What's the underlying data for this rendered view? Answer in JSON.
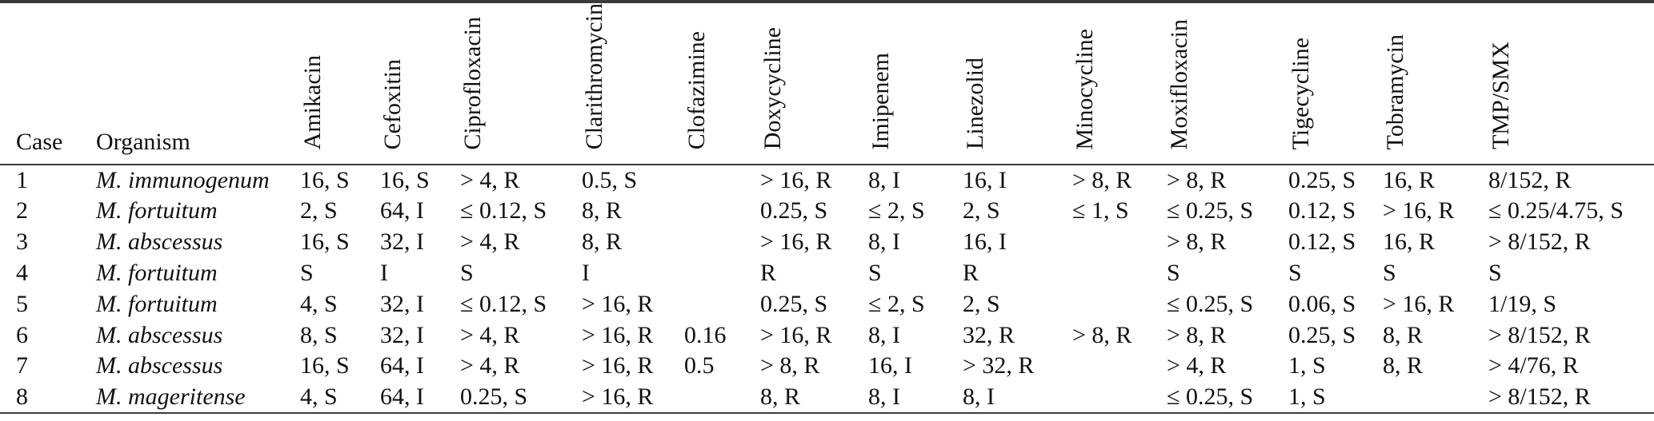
{
  "colors": {
    "background": "#ffffff",
    "text": "#111111",
    "rule": "#3a3a3a"
  },
  "table": {
    "columns": [
      {
        "id": "case",
        "label": "Case",
        "rotated": false
      },
      {
        "id": "organism",
        "label": "Organism",
        "rotated": false
      },
      {
        "id": "amikacin",
        "label": "Amikacin",
        "rotated": true
      },
      {
        "id": "cefoxitin",
        "label": "Cefoxitin",
        "rotated": true
      },
      {
        "id": "ciprofloxacin",
        "label": "Ciprofloxacin",
        "rotated": true
      },
      {
        "id": "clarithromycin",
        "label": "Clarithromycin",
        "rotated": true
      },
      {
        "id": "clofazimine",
        "label": "Clofazimine",
        "rotated": true
      },
      {
        "id": "doxycycline",
        "label": "Doxycycline",
        "rotated": true
      },
      {
        "id": "imipenem",
        "label": "Imipenem",
        "rotated": true
      },
      {
        "id": "linezolid",
        "label": "Linezolid",
        "rotated": true
      },
      {
        "id": "minocycline",
        "label": "Minocycline",
        "rotated": true
      },
      {
        "id": "moxifloxacin",
        "label": "Moxifloxacin",
        "rotated": true
      },
      {
        "id": "tigecycline",
        "label": "Tigecycline",
        "rotated": true
      },
      {
        "id": "tobramycin",
        "label": "Tobramycin",
        "rotated": true
      },
      {
        "id": "tmp-smx",
        "label": "TMP/SMX",
        "rotated": true
      }
    ],
    "rows": [
      [
        "1",
        "M. immunogenum",
        "16, S",
        "16, S",
        "> 4, R",
        "0.5, S",
        "",
        "> 16, R",
        "8, I",
        "16, I",
        "> 8, R",
        "> 8, R",
        "0.25, S",
        "16, R",
        "8/152, R"
      ],
      [
        "2",
        "M. fortuitum",
        "2, S",
        "64, I",
        "≤ 0.12, S",
        "8, R",
        "",
        "0.25, S",
        "≤ 2, S",
        "2, S",
        "≤ 1, S",
        "≤ 0.25, S",
        "0.12, S",
        "> 16, R",
        "≤ 0.25/4.75, S"
      ],
      [
        "3",
        "M. abscessus",
        "16, S",
        "32, I",
        "> 4, R",
        "8, R",
        "",
        "> 16, R",
        "8, I",
        "16, I",
        "",
        "> 8, R",
        "0.12, S",
        "16, R",
        "> 8/152, R"
      ],
      [
        "4",
        "M. fortuitum",
        "S",
        "I",
        "S",
        "I",
        "",
        "R",
        "S",
        "R",
        "",
        "S",
        "S",
        "S",
        "S"
      ],
      [
        "5",
        "M. fortuitum",
        "4, S",
        "32, I",
        "≤ 0.12, S",
        "> 16, R",
        "",
        "0.25, S",
        "≤ 2, S",
        "2, S",
        "",
        "≤ 0.25, S",
        "0.06, S",
        "> 16, R",
        "1/19, S"
      ],
      [
        "6",
        "M. abscessus",
        "8, S",
        "32, I",
        "> 4, R",
        "> 16, R",
        "0.16",
        "> 16, R",
        "8, I",
        "32, R",
        "> 8, R",
        "> 8, R",
        "0.25, S",
        "8, R",
        "> 8/152, R"
      ],
      [
        "7",
        "M. abscessus",
        "16, S",
        "64, I",
        "> 4, R",
        "> 16, R",
        "0.5",
        "> 8, R",
        "16, I",
        "> 32, R",
        "",
        "> 4, R",
        "1, S",
        "8, R",
        "> 4/76, R"
      ],
      [
        "8",
        "M. mageritense",
        "4, S",
        "64, I",
        "0.25, S",
        "> 16, R",
        "",
        "8, R",
        "8, I",
        "8, I",
        "",
        "≤ 0.25, S",
        "1, S",
        "",
        "> 8/152, R"
      ]
    ]
  }
}
